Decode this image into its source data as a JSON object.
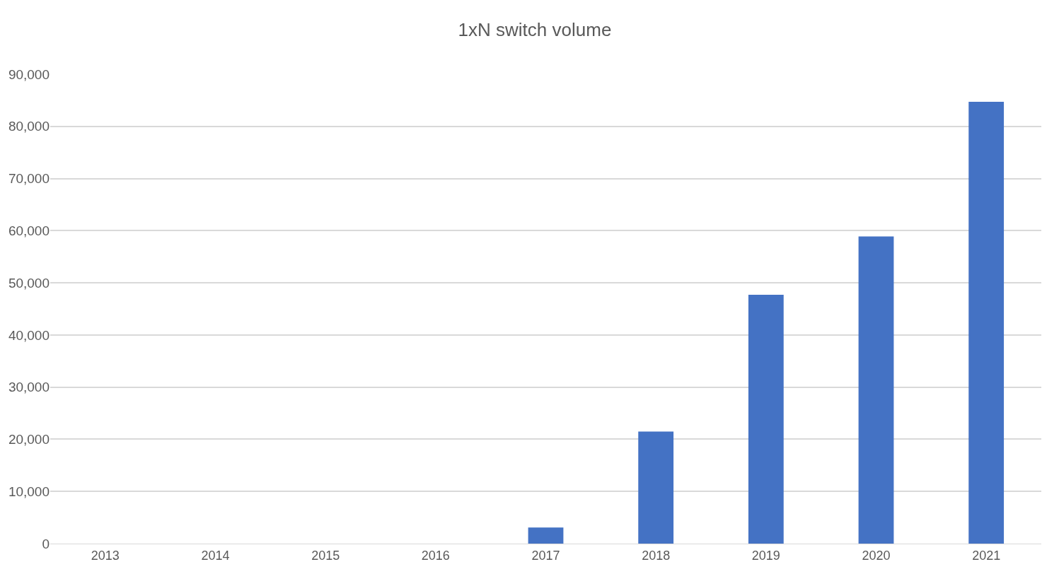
{
  "chart_data": {
    "type": "bar",
    "title": "1xN switch volume",
    "categories": [
      "2013",
      "2014",
      "2015",
      "2016",
      "2017",
      "2018",
      "2019",
      "2020",
      "2021"
    ],
    "values": [
      0,
      0,
      0,
      0,
      3100,
      21500,
      47700,
      58900,
      84700
    ],
    "color": "#4472c4",
    "ylim": [
      0,
      90000
    ],
    "yticks": [
      {
        "value": 0,
        "label": "0"
      },
      {
        "value": 10000,
        "label": "10,000"
      },
      {
        "value": 20000,
        "label": "20,000"
      },
      {
        "value": 30000,
        "label": "30,000"
      },
      {
        "value": 40000,
        "label": "40,000"
      },
      {
        "value": 50000,
        "label": "50,000"
      },
      {
        "value": 60000,
        "label": "60,000"
      },
      {
        "value": 70000,
        "label": "70,000"
      },
      {
        "value": 80000,
        "label": "80,000"
      },
      {
        "value": 90000,
        "label": "90,000"
      }
    ],
    "grid": "y",
    "legend": false
  }
}
